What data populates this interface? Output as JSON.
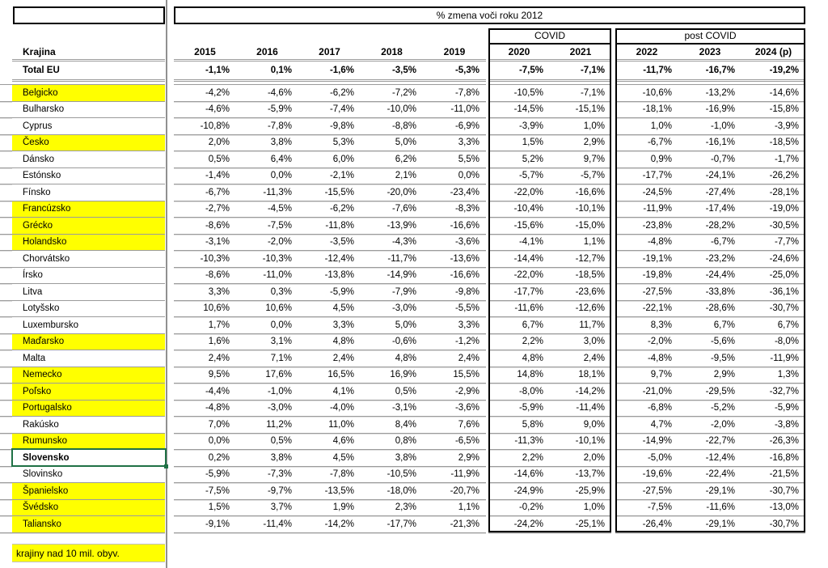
{
  "header": {
    "title": "% zmena voči roku 2012"
  },
  "groups": {
    "covid": "COVID",
    "post_covid": "post COVID"
  },
  "table": {
    "country_column_header": "Krajina",
    "year_columns": [
      "2015",
      "2016",
      "2017",
      "2018",
      "2019",
      "2020",
      "2021",
      "2022",
      "2023",
      "2024 (p)"
    ],
    "total_row": {
      "label": "Total EU",
      "values": [
        "-1,1%",
        "0,1%",
        "-1,6%",
        "-3,5%",
        "-5,3%",
        "-7,5%",
        "-7,1%",
        "-11,7%",
        "-16,7%",
        "-19,2%"
      ]
    },
    "rows": [
      {
        "name": "Belgicko",
        "highlight": true,
        "selected": false,
        "values": [
          "-4,2%",
          "-4,6%",
          "-6,2%",
          "-7,2%",
          "-7,8%",
          "-10,5%",
          "-7,1%",
          "-10,6%",
          "-13,2%",
          "-14,6%"
        ]
      },
      {
        "name": "Bulharsko",
        "highlight": false,
        "selected": false,
        "values": [
          "-4,6%",
          "-5,9%",
          "-7,4%",
          "-10,0%",
          "-11,0%",
          "-14,5%",
          "-15,1%",
          "-18,1%",
          "-16,9%",
          "-15,8%"
        ]
      },
      {
        "name": "Cyprus",
        "highlight": false,
        "selected": false,
        "values": [
          "-10,8%",
          "-7,8%",
          "-9,8%",
          "-8,8%",
          "-6,9%",
          "-3,9%",
          "1,0%",
          "1,0%",
          "-1,0%",
          "-3,9%"
        ]
      },
      {
        "name": "Česko",
        "highlight": true,
        "selected": false,
        "values": [
          "2,0%",
          "3,8%",
          "5,3%",
          "5,0%",
          "3,3%",
          "1,5%",
          "2,9%",
          "-6,7%",
          "-16,1%",
          "-18,5%"
        ]
      },
      {
        "name": "Dánsko",
        "highlight": false,
        "selected": false,
        "values": [
          "0,5%",
          "6,4%",
          "6,0%",
          "6,2%",
          "5,5%",
          "5,2%",
          "9,7%",
          "0,9%",
          "-0,7%",
          "-1,7%"
        ]
      },
      {
        "name": "Estónsko",
        "highlight": false,
        "selected": false,
        "values": [
          "-1,4%",
          "0,0%",
          "-2,1%",
          "2,1%",
          "0,0%",
          "-5,7%",
          "-5,7%",
          "-17,7%",
          "-24,1%",
          "-26,2%"
        ]
      },
      {
        "name": "Fínsko",
        "highlight": false,
        "selected": false,
        "values": [
          "-6,7%",
          "-11,3%",
          "-15,5%",
          "-20,0%",
          "-23,4%",
          "-22,0%",
          "-16,6%",
          "-24,5%",
          "-27,4%",
          "-28,1%"
        ]
      },
      {
        "name": "Francúzsko",
        "highlight": true,
        "selected": false,
        "values": [
          "-2,7%",
          "-4,5%",
          "-6,2%",
          "-7,6%",
          "-8,3%",
          "-10,4%",
          "-10,1%",
          "-11,9%",
          "-17,4%",
          "-19,0%"
        ]
      },
      {
        "name": "Grécko",
        "highlight": true,
        "selected": false,
        "values": [
          "-8,6%",
          "-7,5%",
          "-11,8%",
          "-13,9%",
          "-16,6%",
          "-15,6%",
          "-15,0%",
          "-23,8%",
          "-28,2%",
          "-30,5%"
        ]
      },
      {
        "name": "Holandsko",
        "highlight": true,
        "selected": false,
        "values": [
          "-3,1%",
          "-2,0%",
          "-3,5%",
          "-4,3%",
          "-3,6%",
          "-4,1%",
          "1,1%",
          "-4,8%",
          "-6,7%",
          "-7,7%"
        ]
      },
      {
        "name": "Chorvátsko",
        "highlight": false,
        "selected": false,
        "values": [
          "-10,3%",
          "-10,3%",
          "-12,4%",
          "-11,7%",
          "-13,6%",
          "-14,4%",
          "-12,7%",
          "-19,1%",
          "-23,2%",
          "-24,6%"
        ]
      },
      {
        "name": "Írsko",
        "highlight": false,
        "selected": false,
        "values": [
          "-8,6%",
          "-11,0%",
          "-13,8%",
          "-14,9%",
          "-16,6%",
          "-22,0%",
          "-18,5%",
          "-19,8%",
          "-24,4%",
          "-25,0%"
        ]
      },
      {
        "name": "Litva",
        "highlight": false,
        "selected": false,
        "values": [
          "3,3%",
          "0,3%",
          "-5,9%",
          "-7,9%",
          "-9,8%",
          "-17,7%",
          "-23,6%",
          "-27,5%",
          "-33,8%",
          "-36,1%"
        ]
      },
      {
        "name": "Lotyšsko",
        "highlight": false,
        "selected": false,
        "values": [
          "10,6%",
          "10,6%",
          "4,5%",
          "-3,0%",
          "-5,5%",
          "-11,6%",
          "-12,6%",
          "-22,1%",
          "-28,6%",
          "-30,7%"
        ]
      },
      {
        "name": "Luxembursko",
        "highlight": false,
        "selected": false,
        "values": [
          "1,7%",
          "0,0%",
          "3,3%",
          "5,0%",
          "3,3%",
          "6,7%",
          "11,7%",
          "8,3%",
          "6,7%",
          "6,7%"
        ]
      },
      {
        "name": "Maďarsko",
        "highlight": true,
        "selected": false,
        "values": [
          "1,6%",
          "3,1%",
          "4,8%",
          "-0,6%",
          "-1,2%",
          "2,2%",
          "3,0%",
          "-2,0%",
          "-5,6%",
          "-8,0%"
        ]
      },
      {
        "name": "Malta",
        "highlight": false,
        "selected": false,
        "values": [
          "2,4%",
          "7,1%",
          "2,4%",
          "4,8%",
          "2,4%",
          "4,8%",
          "2,4%",
          "-4,8%",
          "-9,5%",
          "-11,9%"
        ]
      },
      {
        "name": "Nemecko",
        "highlight": true,
        "selected": false,
        "values": [
          "9,5%",
          "17,6%",
          "16,5%",
          "16,9%",
          "15,5%",
          "14,8%",
          "18,1%",
          "9,7%",
          "2,9%",
          "1,3%"
        ]
      },
      {
        "name": "Poľsko",
        "highlight": true,
        "selected": false,
        "values": [
          "-4,4%",
          "-1,0%",
          "4,1%",
          "0,5%",
          "-2,9%",
          "-8,0%",
          "-14,2%",
          "-21,0%",
          "-29,5%",
          "-32,7%"
        ]
      },
      {
        "name": "Portugalsko",
        "highlight": true,
        "selected": false,
        "values": [
          "-4,8%",
          "-3,0%",
          "-4,0%",
          "-3,1%",
          "-3,6%",
          "-5,9%",
          "-11,4%",
          "-6,8%",
          "-5,2%",
          "-5,9%"
        ]
      },
      {
        "name": "Rakúsko",
        "highlight": false,
        "selected": false,
        "values": [
          "7,0%",
          "11,2%",
          "11,0%",
          "8,4%",
          "7,6%",
          "5,8%",
          "9,0%",
          "4,7%",
          "-2,0%",
          "-3,8%"
        ]
      },
      {
        "name": "Rumunsko",
        "highlight": true,
        "selected": false,
        "values": [
          "0,0%",
          "0,5%",
          "4,6%",
          "0,8%",
          "-6,5%",
          "-11,3%",
          "-10,1%",
          "-14,9%",
          "-22,7%",
          "-26,3%"
        ]
      },
      {
        "name": "Slovensko",
        "highlight": false,
        "selected": true,
        "values": [
          "0,2%",
          "3,8%",
          "4,5%",
          "3,8%",
          "2,9%",
          "2,2%",
          "2,0%",
          "-5,0%",
          "-12,4%",
          "-16,8%"
        ]
      },
      {
        "name": "Slovinsko",
        "highlight": false,
        "selected": false,
        "values": [
          "-5,9%",
          "-7,3%",
          "-7,8%",
          "-10,5%",
          "-11,9%",
          "-14,6%",
          "-13,7%",
          "-19,6%",
          "-22,4%",
          "-21,5%"
        ]
      },
      {
        "name": "Španielsko",
        "highlight": true,
        "selected": false,
        "values": [
          "-7,5%",
          "-9,7%",
          "-13,5%",
          "-18,0%",
          "-20,7%",
          "-24,9%",
          "-25,9%",
          "-27,5%",
          "-29,1%",
          "-30,7%"
        ]
      },
      {
        "name": "Švédsko",
        "highlight": true,
        "selected": false,
        "values": [
          "1,5%",
          "3,7%",
          "1,9%",
          "2,3%",
          "1,1%",
          "-0,2%",
          "1,0%",
          "-7,5%",
          "-11,6%",
          "-13,0%"
        ]
      },
      {
        "name": "Taliansko",
        "highlight": true,
        "selected": false,
        "values": [
          "-9,1%",
          "-11,4%",
          "-14,2%",
          "-17,7%",
          "-21,3%",
          "-24,2%",
          "-25,1%",
          "-26,4%",
          "-29,1%",
          "-30,7%"
        ]
      }
    ]
  },
  "footer": {
    "note": "krajiny nad 10 mil. obyv."
  },
  "colors": {
    "highlight_yellow": "#FFFF00",
    "selection_green": "#1F7145",
    "grid_grey": "#9B9B9B",
    "box_border": "#000000"
  }
}
